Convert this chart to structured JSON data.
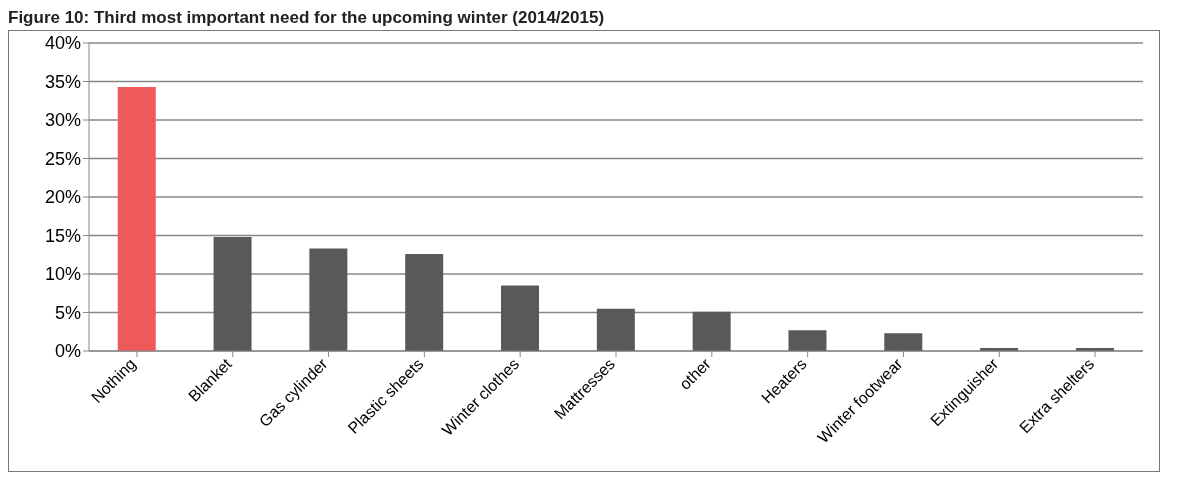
{
  "chart_data": {
    "type": "bar",
    "title": "Figure 10: Third most important need for the upcoming winter (2014/2015)",
    "categories": [
      "Nothing",
      "Blanket",
      "Gas cylinder",
      "Plastic sheets",
      "Winter clothes",
      "Mattresses",
      "other",
      "Heaters",
      "Winter footwear",
      "Extinguisher",
      "Extra shelters"
    ],
    "values": [
      34.3,
      14.8,
      13.3,
      12.6,
      8.5,
      5.5,
      5.1,
      2.7,
      2.3,
      0.4,
      0.4
    ],
    "colors": [
      "#ee5a5a",
      "#595959",
      "#595959",
      "#595959",
      "#595959",
      "#595959",
      "#595959",
      "#595959",
      "#595959",
      "#595959",
      "#595959"
    ],
    "ylim": [
      0,
      40
    ],
    "yticks": [
      {
        "value": 0,
        "label": "0%"
      },
      {
        "value": 5,
        "label": "5%"
      },
      {
        "value": 10,
        "label": "10%"
      },
      {
        "value": 15,
        "label": "15%"
      },
      {
        "value": 20,
        "label": "20%"
      },
      {
        "value": 25,
        "label": "25%"
      },
      {
        "value": 30,
        "label": "30%"
      },
      {
        "value": 35,
        "label": "35%"
      },
      {
        "value": 40,
        "label": "40%"
      }
    ],
    "grid": "y",
    "legend": false
  }
}
